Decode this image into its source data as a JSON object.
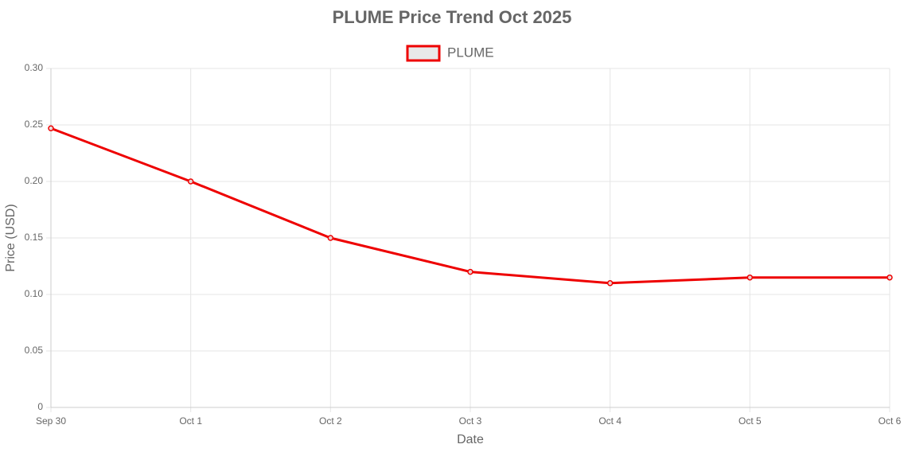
{
  "chart_data": {
    "type": "line",
    "title": "PLUME Price Trend Oct 2025",
    "x_label": "Date",
    "y_label": "Price (USD)",
    "categories": [
      "Sep 30",
      "Oct 1",
      "Oct 2",
      "Oct 3",
      "Oct 4",
      "Oct 5",
      "Oct 6"
    ],
    "series": [
      {
        "name": "PLUME",
        "color": "#ee0000",
        "values": [
          0.247,
          0.2,
          0.15,
          0.12,
          0.11,
          0.115,
          0.115
        ]
      }
    ],
    "ylim": [
      0,
      0.3
    ],
    "yticks": [
      0,
      0.05,
      {
        "value": 0.1,
        "label": "0.10"
      },
      0.15,
      {
        "value": 0.2,
        "label": "0.20"
      },
      0.25,
      {
        "value": 0.3,
        "label": "0.30"
      }
    ],
    "grid": true,
    "legend": "top"
  }
}
